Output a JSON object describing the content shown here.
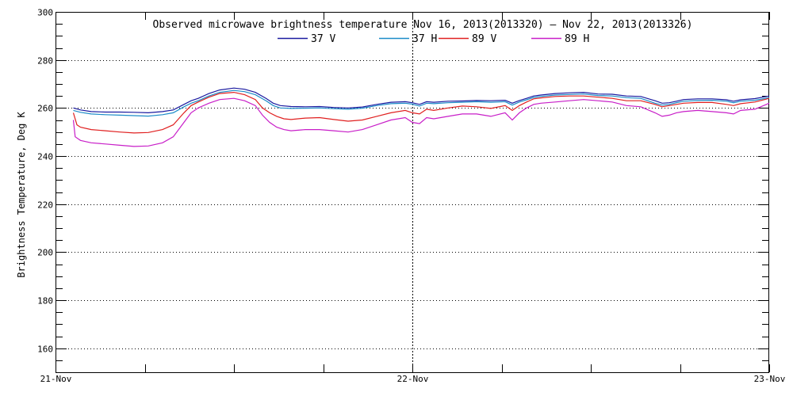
{
  "chart_data": {
    "type": "line",
    "title": "Observed microwave brightness temperature Nov 16, 2013(2013320) – Nov 22, 2013(2013326)",
    "ylabel": "Brightness Temperature, Deg K",
    "xlabel": "",
    "ylim": [
      150,
      300
    ],
    "xlim": [
      0,
      2
    ],
    "yticks": [
      160,
      180,
      200,
      220,
      240,
      260,
      280,
      300
    ],
    "xticks": [
      {
        "x": 0,
        "label": "21-Nov"
      },
      {
        "x": 1,
        "label": "22-Nov"
      },
      {
        "x": 2,
        "label": "23-Nov"
      }
    ],
    "grid": "dotted",
    "legend": "top-center",
    "series": [
      {
        "name": "37 V",
        "color": "#1a1aa0",
        "x": [
          0.05,
          0.07,
          0.1,
          0.14,
          0.18,
          0.22,
          0.26,
          0.3,
          0.33,
          0.36,
          0.38,
          0.4,
          0.43,
          0.46,
          0.5,
          0.53,
          0.56,
          0.59,
          0.61,
          0.63,
          0.66,
          0.7,
          0.74,
          0.78,
          0.82,
          0.86,
          0.9,
          0.94,
          0.98,
          1.0,
          1.02,
          1.04,
          1.06,
          1.1,
          1.14,
          1.18,
          1.22,
          1.26,
          1.28,
          1.3,
          1.32,
          1.34,
          1.36,
          1.4,
          1.44,
          1.48,
          1.52,
          1.56,
          1.6,
          1.64,
          1.68,
          1.7,
          1.72,
          1.74,
          1.76,
          1.8,
          1.84,
          1.88,
          1.9,
          1.92,
          1.96,
          2.0
        ],
        "y": [
          260,
          259.2,
          258.5,
          258.3,
          258.3,
          258.2,
          258.0,
          258.5,
          259.2,
          261.5,
          263.0,
          264.0,
          266.0,
          267.5,
          268.3,
          267.8,
          266.5,
          264.0,
          262.0,
          261.0,
          260.6,
          260.5,
          260.6,
          260.2,
          260.0,
          260.4,
          261.5,
          262.4,
          262.6,
          262.2,
          261.5,
          262.6,
          262.4,
          262.8,
          262.9,
          263.1,
          263.0,
          263.2,
          262.0,
          263.1,
          264.0,
          265.0,
          265.4,
          266.0,
          266.3,
          266.5,
          265.8,
          265.7,
          265.0,
          264.8,
          263.0,
          262.0,
          262.2,
          262.8,
          263.5,
          263.8,
          263.8,
          263.4,
          262.8,
          263.4,
          263.9,
          265.0
        ]
      },
      {
        "name": "37 H",
        "color": "#1c8cc8",
        "x": [
          0.05,
          0.07,
          0.1,
          0.14,
          0.18,
          0.22,
          0.26,
          0.3,
          0.33,
          0.36,
          0.38,
          0.4,
          0.43,
          0.46,
          0.5,
          0.53,
          0.56,
          0.59,
          0.61,
          0.63,
          0.66,
          0.7,
          0.74,
          0.78,
          0.82,
          0.86,
          0.9,
          0.94,
          0.98,
          1.0,
          1.02,
          1.04,
          1.06,
          1.1,
          1.14,
          1.18,
          1.22,
          1.26,
          1.28,
          1.3,
          1.32,
          1.34,
          1.36,
          1.4,
          1.44,
          1.48,
          1.52,
          1.56,
          1.6,
          1.64,
          1.68,
          1.7,
          1.72,
          1.74,
          1.76,
          1.8,
          1.84,
          1.88,
          1.9,
          1.92,
          1.96,
          2.0
        ],
        "y": [
          259,
          258.2,
          257.5,
          257.2,
          257.0,
          256.8,
          256.6,
          257.2,
          258.0,
          260.5,
          262.0,
          263.0,
          265.0,
          266.5,
          267.3,
          266.8,
          265.5,
          263.0,
          261.0,
          260.0,
          259.8,
          259.9,
          260.0,
          259.7,
          259.5,
          259.9,
          261.0,
          261.8,
          262.0,
          261.6,
          260.8,
          262.0,
          261.8,
          262.2,
          262.4,
          262.6,
          262.4,
          262.6,
          261.2,
          262.5,
          263.4,
          264.4,
          264.8,
          265.4,
          265.6,
          265.8,
          265.2,
          265.0,
          264.3,
          264.0,
          262.0,
          261.2,
          261.5,
          262.2,
          262.8,
          263.1,
          263.2,
          262.8,
          262.2,
          262.8,
          263.2,
          264.3
        ]
      },
      {
        "name": "89 V",
        "color": "#e02020",
        "x": [
          0.05,
          0.06,
          0.07,
          0.1,
          0.14,
          0.18,
          0.22,
          0.26,
          0.3,
          0.33,
          0.36,
          0.38,
          0.4,
          0.43,
          0.46,
          0.5,
          0.53,
          0.56,
          0.58,
          0.6,
          0.62,
          0.64,
          0.66,
          0.7,
          0.74,
          0.78,
          0.82,
          0.86,
          0.9,
          0.94,
          0.98,
          1.0,
          1.02,
          1.04,
          1.06,
          1.1,
          1.14,
          1.18,
          1.22,
          1.26,
          1.28,
          1.3,
          1.32,
          1.34,
          1.36,
          1.4,
          1.44,
          1.48,
          1.52,
          1.56,
          1.6,
          1.64,
          1.68,
          1.7,
          1.72,
          1.74,
          1.76,
          1.8,
          1.84,
          1.88,
          1.9,
          1.92,
          1.96,
          2.0
        ],
        "y": [
          258,
          253,
          252.0,
          251.0,
          250.5,
          250.0,
          249.6,
          249.8,
          251.0,
          253.0,
          258.0,
          261.0,
          262.5,
          264.5,
          266.0,
          266.5,
          265.5,
          263.5,
          260.0,
          258.0,
          256.5,
          255.5,
          255.2,
          255.8,
          256.0,
          255.2,
          254.5,
          255.0,
          256.5,
          258.0,
          259.0,
          258.0,
          257.5,
          259.5,
          259.0,
          260.0,
          260.8,
          260.5,
          259.8,
          261.0,
          259.0,
          261.0,
          262.5,
          263.8,
          264.2,
          264.8,
          265.0,
          265.0,
          264.5,
          264.0,
          263.0,
          263.0,
          261.5,
          260.5,
          261.0,
          261.5,
          262.0,
          262.3,
          262.3,
          261.5,
          261.0,
          261.8,
          262.5,
          264.0
        ]
      },
      {
        "name": "89 H",
        "color": "#c81ec8",
        "x": [
          0.05,
          0.055,
          0.07,
          0.1,
          0.14,
          0.18,
          0.22,
          0.26,
          0.3,
          0.33,
          0.36,
          0.38,
          0.4,
          0.43,
          0.46,
          0.5,
          0.53,
          0.56,
          0.58,
          0.6,
          0.62,
          0.64,
          0.66,
          0.7,
          0.74,
          0.78,
          0.82,
          0.86,
          0.9,
          0.94,
          0.98,
          1.0,
          1.02,
          1.04,
          1.06,
          1.1,
          1.14,
          1.18,
          1.22,
          1.26,
          1.28,
          1.3,
          1.32,
          1.34,
          1.36,
          1.4,
          1.44,
          1.48,
          1.52,
          1.56,
          1.6,
          1.64,
          1.68,
          1.7,
          1.72,
          1.74,
          1.76,
          1.8,
          1.84,
          1.88,
          1.9,
          1.92,
          1.96,
          2.0
        ],
        "y": [
          255,
          248,
          246.5,
          245.5,
          245.0,
          244.5,
          244.0,
          244.2,
          245.5,
          248.0,
          254.0,
          258.0,
          260.0,
          262.0,
          263.5,
          264.0,
          263.0,
          261.0,
          257.0,
          254.0,
          252.0,
          251.0,
          250.5,
          251.0,
          251.0,
          250.5,
          250.0,
          251.0,
          253.0,
          255.0,
          256.0,
          254.0,
          253.5,
          256.0,
          255.5,
          256.5,
          257.5,
          257.5,
          256.5,
          258.0,
          255.0,
          258.0,
          260.0,
          261.5,
          262.0,
          262.5,
          263.0,
          263.5,
          263.0,
          262.5,
          261.0,
          260.5,
          258.0,
          256.5,
          257.0,
          258.0,
          258.5,
          259.0,
          258.5,
          258.0,
          257.5,
          259.0,
          259.5,
          262.0
        ]
      }
    ]
  }
}
